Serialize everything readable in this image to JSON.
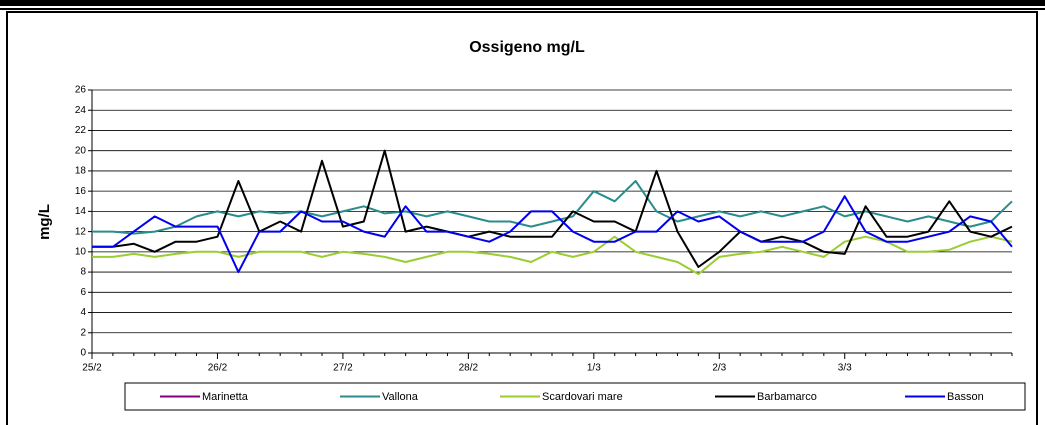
{
  "chart_data": {
    "type": "line",
    "title": "Ossigeno mg/L",
    "y_label": "mg/L",
    "categories": [
      "25/2",
      null,
      null,
      null,
      null,
      null,
      "26/2",
      null,
      null,
      null,
      null,
      null,
      "27/2",
      null,
      null,
      null,
      null,
      null,
      "28/2",
      null,
      null,
      null,
      null,
      null,
      "1/3",
      null,
      null,
      null,
      null,
      null,
      "2/3",
      null,
      null,
      null,
      null,
      null,
      "3/3",
      null,
      null,
      null,
      null,
      null,
      null,
      null,
      null
    ],
    "series": [
      {
        "name": "Marinetta",
        "color": "#800080",
        "values": [
          null,
          null,
          null,
          null,
          null,
          null,
          null,
          null,
          null,
          null,
          null,
          null,
          null,
          null,
          null,
          null,
          null,
          null,
          null,
          null,
          null,
          null,
          null,
          null,
          null,
          null,
          null,
          null,
          null,
          null,
          null,
          null,
          null,
          null,
          null,
          null,
          null,
          null,
          null,
          null,
          null,
          null,
          null,
          null,
          null
        ]
      },
      {
        "name": "Vallona",
        "color": "#2a8c8c",
        "values": [
          12,
          12,
          11.8,
          12,
          12.5,
          13.5,
          14,
          13.5,
          14,
          13.8,
          14,
          13.5,
          14,
          14.5,
          13.8,
          14,
          13.5,
          14,
          13.5,
          13,
          13,
          12.5,
          13,
          13.5,
          16,
          15,
          17,
          14,
          13,
          13.5,
          14,
          13.5,
          14,
          13.5,
          14,
          14.5,
          13.5,
          14,
          13.5,
          13,
          13.5,
          13,
          12.5,
          13,
          15
        ]
      },
      {
        "name": "Scardovari mare",
        "color": "#9acd32",
        "values": [
          9.5,
          9.5,
          9.8,
          9.5,
          9.8,
          10,
          10,
          9.5,
          10,
          10,
          10,
          9.5,
          10,
          9.8,
          9.5,
          9,
          9.5,
          10,
          10,
          9.8,
          9.5,
          9,
          10,
          9.5,
          10,
          11.5,
          10,
          9.5,
          9,
          7.8,
          9.5,
          9.8,
          10,
          10.5,
          10,
          9.5,
          11,
          11.5,
          11,
          10,
          10,
          10.2,
          11,
          11.5,
          11
        ]
      },
      {
        "name": "Barbamarco",
        "color": "#000000",
        "values": [
          10.5,
          10.5,
          10.8,
          10,
          11,
          11,
          11.5,
          17,
          12,
          13,
          12,
          19,
          12.5,
          13,
          20,
          12,
          12.5,
          12,
          11.5,
          12,
          11.5,
          11.5,
          11.5,
          14,
          13,
          13,
          12,
          18,
          12,
          8.5,
          10,
          12,
          11,
          11.5,
          11,
          10,
          9.8,
          14.5,
          11.5,
          11.5,
          12,
          15,
          12,
          11.5,
          12.5
        ]
      },
      {
        "name": "Basson",
        "color": "#0000ee",
        "values": [
          10.5,
          10.5,
          12,
          13.5,
          12.5,
          12.5,
          12.5,
          8,
          12,
          12,
          14,
          13,
          13,
          12,
          11.5,
          14.5,
          12,
          12,
          11.5,
          11,
          12,
          14,
          14,
          12,
          11,
          11,
          12,
          12,
          14,
          13,
          13.5,
          12,
          11,
          11,
          11,
          12,
          15.5,
          12,
          11,
          11,
          11.5,
          12,
          13.5,
          13,
          10.5
        ]
      }
    ],
    "ylim": [
      0,
      26
    ],
    "yticks": [
      0,
      2,
      4,
      6,
      8,
      10,
      12,
      14,
      16,
      18,
      20,
      22,
      24,
      26
    ],
    "grid": true
  }
}
